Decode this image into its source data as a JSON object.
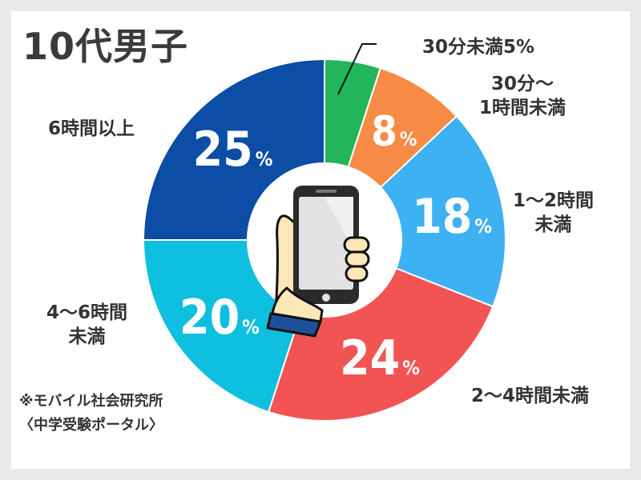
{
  "title": "10代男子",
  "source": {
    "line1": "※モバイル社会研究所",
    "line2": "〈中学受験ポータル〉"
  },
  "labels": {
    "s0": "30分未満5%",
    "s1a": "30分〜",
    "s1b": "1時間未満",
    "s2a": "1〜2時間",
    "s2b": "未満",
    "s3": "2〜4時間未満",
    "s4a": "4〜6時間",
    "s4b": "未満",
    "s5": "6時間以上"
  },
  "chart_data": {
    "type": "pie",
    "donut": true,
    "title": "10代男子",
    "unit": "%",
    "categories": [
      "30分未満",
      "30分〜1時間未満",
      "1〜2時間未満",
      "2〜4時間未満",
      "4〜6時間未満",
      "6時間以上"
    ],
    "values": [
      5,
      8,
      18,
      24,
      20,
      25
    ],
    "colors": [
      "#22b55a",
      "#f78a45",
      "#3db1f2",
      "#f25454",
      "#0fbfe0",
      "#0c4da6"
    ],
    "start": "12 o'clock, clockwise"
  },
  "icon": "smartphone-in-hand-icon"
}
